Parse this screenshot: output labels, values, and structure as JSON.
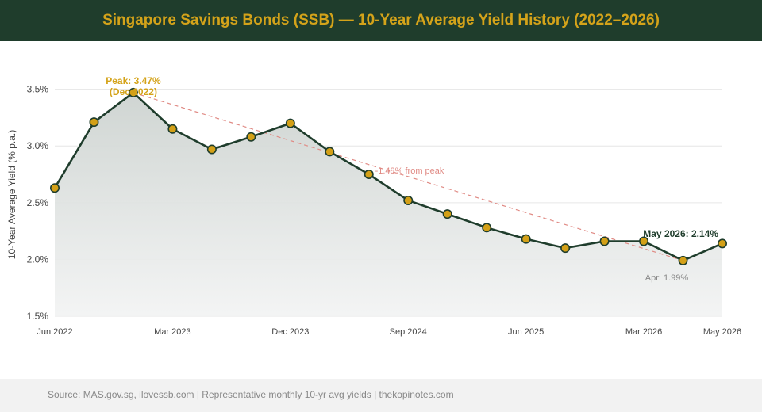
{
  "header": {
    "title": "Singapore Savings Bonds (SSB) — 10-Year Average Yield History (2022–2026)"
  },
  "footer": {
    "source": "Source: MAS.gov.sg, ilovessb.com | Representative monthly 10-yr avg yields | thekopinotes.com"
  },
  "colors": {
    "header_bg": "#1f3d2c",
    "accent_gold": "#d4a31a",
    "line": "#1f3d2c",
    "marker_fill": "#d4a017",
    "trend_dashed": "#e08a84",
    "gridline": "#e6e6e6"
  },
  "chart_data": {
    "type": "line",
    "title": "Singapore Savings Bonds (SSB) — 10-Year Average Yield History (2022–2026)",
    "ylabel": "10-Year Average Yield (% p.a.)",
    "xlabel": "",
    "ylim": [
      1.5,
      3.7
    ],
    "yticks": [
      1.5,
      2.0,
      2.5,
      3.0,
      3.5
    ],
    "ytick_labels": [
      "1.5%",
      "2.0%",
      "2.5%",
      "3.0%",
      "3.5%"
    ],
    "xtick_labels": [
      "Jun 2022",
      "Mar 2023",
      "Dec 2023",
      "Sep 2024",
      "Jun 2025",
      "Mar 2026",
      "May 2026"
    ],
    "grid": true,
    "series": [
      {
        "values": [
          2.63,
          3.21,
          3.47,
          3.15,
          2.97,
          3.08,
          3.2,
          2.95,
          2.75,
          2.52,
          2.4,
          2.28,
          2.18,
          2.1,
          2.16,
          2.16,
          1.99,
          2.14
        ]
      }
    ],
    "annotations": {
      "peak_line1": "Peak: 3.47%",
      "peak_line2": "(Dec 2022)",
      "trend_label": "-1.48% from peak",
      "latest": "May 2026: 2.14%",
      "previous": "Apr: 1.99%"
    }
  }
}
